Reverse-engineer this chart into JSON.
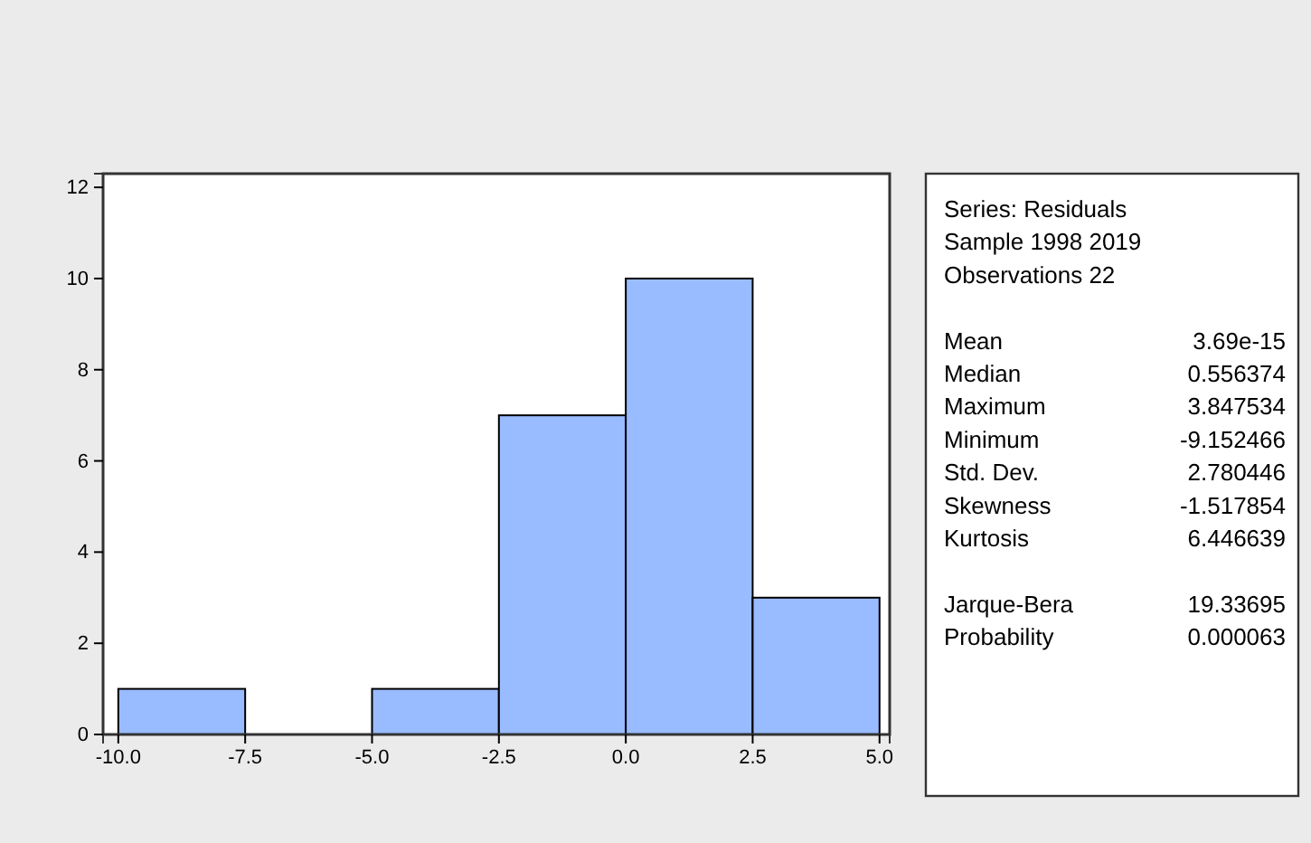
{
  "chart_data": [
    {
      "type": "histogram",
      "bins": [
        -10,
        -7.5,
        -5,
        -2.5,
        0,
        2.5,
        5
      ],
      "values": [
        1,
        0,
        1,
        7,
        10,
        3
      ],
      "color": "#99bbff",
      "xlim": [
        -10.3,
        5.2
      ],
      "xticks": [
        {
          "value": -10,
          "label": "-10.0"
        },
        -7.5,
        {
          "value": -5,
          "label": "-5.0"
        },
        -2.5,
        {
          "value": 0,
          "label": "0.0"
        },
        2.5,
        {
          "value": 5,
          "label": "5.0"
        }
      ],
      "ylim": [
        0,
        12.3
      ],
      "yticks": [
        0,
        2,
        4,
        6,
        8,
        10,
        12
      ],
      "grid": false
    },
    {
      "type": "other",
      "title": "Series: Residuals",
      "annotations": [
        "Sample 1998 2019",
        "Observations 22"
      ],
      "categories": [
        "Mean",
        "Median",
        "Maximum",
        "Minimum",
        "Std. Dev.",
        "Skewness",
        "Kurtosis",
        "Jarque-Bera",
        "Probability"
      ],
      "values": [
        3.69e-15,
        0.556374,
        3.847534,
        -9.152466,
        2.780446,
        -1.517854,
        6.446639,
        19.33695,
        6.3e-05
      ],
      "value_labels": [
        "3.69e-15",
        "0.556374",
        "3.847534",
        "-9.152466",
        "2.780446",
        "-1.517854",
        "6.446639",
        "19.33695",
        "0.000063"
      ]
    }
  ]
}
